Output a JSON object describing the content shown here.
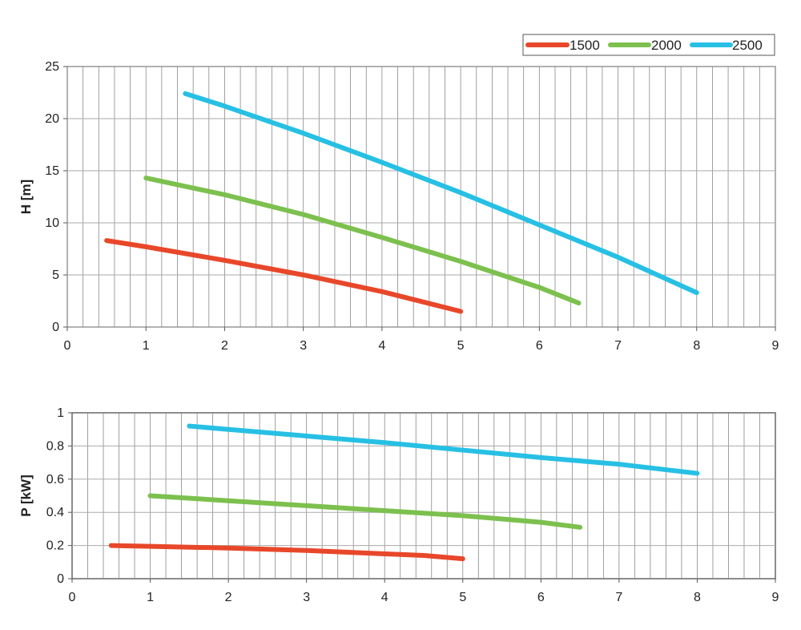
{
  "legend": {
    "placement": "top-right",
    "entries": [
      "1500",
      "2000",
      "2500"
    ]
  },
  "colors": {
    "1500": "#e8472a",
    "2000": "#7cc04e",
    "2500": "#27c0e4",
    "grid": "#888888"
  },
  "chart_data": [
    {
      "type": "line",
      "ylabel": "H [m]",
      "xlabel": "",
      "xlim": [
        0,
        9
      ],
      "ylim": [
        0,
        25
      ],
      "xticks": [
        "0",
        "1",
        "2",
        "3",
        "4",
        "5",
        "6",
        "7",
        "8",
        "9"
      ],
      "yticks": [
        "0",
        "5",
        "10",
        "15",
        "20",
        "25"
      ],
      "grid": true,
      "series": [
        {
          "name": "1500",
          "x": [
            0.5,
            1,
            2,
            3,
            4,
            5
          ],
          "y": [
            8.3,
            7.7,
            6.4,
            5.0,
            3.4,
            1.5
          ]
        },
        {
          "name": "2000",
          "x": [
            1,
            2,
            3,
            4,
            5,
            6,
            6.5
          ],
          "y": [
            14.3,
            12.7,
            10.8,
            8.6,
            6.3,
            3.8,
            2.3
          ]
        },
        {
          "name": "2500",
          "x": [
            1.5,
            2,
            3,
            4,
            5,
            6,
            7,
            8
          ],
          "y": [
            22.4,
            21.2,
            18.6,
            15.8,
            12.9,
            9.8,
            6.7,
            3.3
          ]
        }
      ]
    },
    {
      "type": "line",
      "ylabel": "P [kW]",
      "xlabel": "",
      "xlim": [
        0,
        9
      ],
      "ylim": [
        0,
        1
      ],
      "xticks": [
        "0",
        "1",
        "2",
        "3",
        "4",
        "5",
        "6",
        "7",
        "8",
        "9"
      ],
      "yticks": [
        "0",
        "0.2",
        "0.4",
        "0.6",
        "0.8",
        "1"
      ],
      "grid": true,
      "series": [
        {
          "name": "1500",
          "x": [
            0.5,
            1,
            2,
            3,
            4,
            4.5,
            5
          ],
          "y": [
            0.2,
            0.195,
            0.185,
            0.17,
            0.15,
            0.14,
            0.12
          ]
        },
        {
          "name": "2000",
          "x": [
            1,
            2,
            3,
            4,
            5,
            6,
            6.5
          ],
          "y": [
            0.5,
            0.47,
            0.44,
            0.41,
            0.38,
            0.34,
            0.31
          ]
        },
        {
          "name": "2500",
          "x": [
            1.5,
            2,
            3,
            4,
            5,
            6,
            7,
            8
          ],
          "y": [
            0.92,
            0.9,
            0.86,
            0.82,
            0.775,
            0.73,
            0.69,
            0.635
          ]
        }
      ]
    }
  ]
}
